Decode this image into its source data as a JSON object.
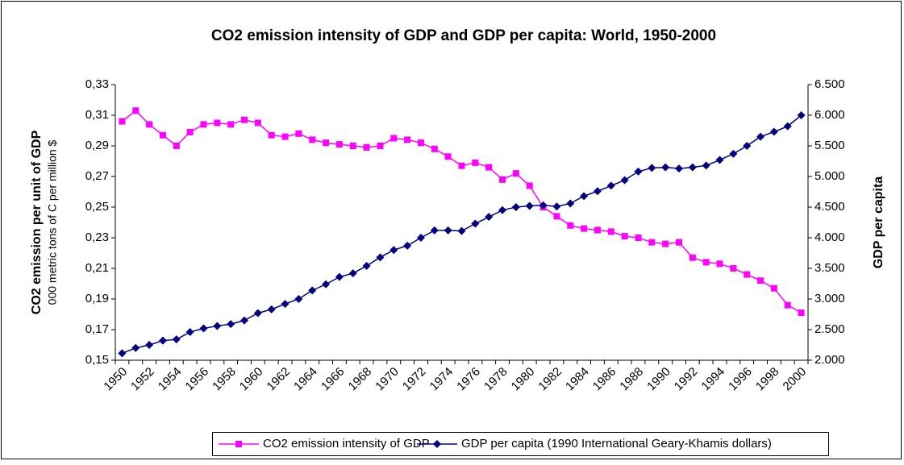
{
  "chart_data": {
    "type": "line",
    "title": "CO2 emission intensity of GDP and GDP per capita: World, 1950-2000",
    "y_label": "CO2 emission per unit of GDP",
    "y_sublabel": "000 metric tons of C per million $",
    "y2_label": "GDP per capita",
    "categories": [
      "1950",
      null,
      "1952",
      null,
      "1954",
      null,
      "1956",
      null,
      "1958",
      null,
      "1960",
      null,
      "1962",
      null,
      "1964",
      null,
      "1966",
      null,
      "1968",
      null,
      "1970",
      null,
      "1972",
      null,
      "1974",
      null,
      "1976",
      null,
      "1978",
      null,
      "1980",
      null,
      "1982",
      null,
      "1984",
      null,
      "1986",
      null,
      "1988",
      null,
      "1990",
      null,
      "1992",
      null,
      "1994",
      null,
      "1996",
      null,
      "1998",
      null,
      "2000"
    ],
    "series": [
      {
        "name": "CO2 emission intensity of GDP",
        "color": "#ff00ff",
        "marker": "square",
        "axis": "y",
        "values": [
          0.306,
          0.313,
          0.304,
          0.297,
          0.29,
          0.299,
          0.304,
          0.305,
          0.304,
          0.307,
          0.305,
          0.297,
          0.296,
          0.298,
          0.294,
          0.292,
          0.291,
          0.29,
          0.289,
          0.29,
          0.295,
          0.294,
          0.292,
          0.288,
          0.283,
          0.277,
          0.279,
          0.276,
          0.268,
          0.272,
          0.264,
          0.25,
          0.244,
          0.238,
          0.236,
          0.235,
          0.234,
          0.231,
          0.23,
          0.227,
          0.226,
          0.227,
          0.217,
          0.214,
          0.213,
          0.21,
          0.206,
          0.202,
          0.197,
          0.186,
          0.181
        ]
      },
      {
        "name": "GDP per capita (1990 International Geary-Khamis dollars)",
        "color": "#000080",
        "marker": "diamond",
        "axis": "y2",
        "values": [
          2113,
          2200,
          2250,
          2320,
          2340,
          2460,
          2520,
          2560,
          2590,
          2650,
          2770,
          2830,
          2920,
          3000,
          3140,
          3240,
          3360,
          3420,
          3540,
          3680,
          3800,
          3870,
          4000,
          4120,
          4120,
          4110,
          4230,
          4340,
          4450,
          4500,
          4520,
          4530,
          4510,
          4560,
          4680,
          4760,
          4850,
          4940,
          5080,
          5140,
          5150,
          5130,
          5150,
          5180,
          5270,
          5370,
          5500,
          5650,
          5730,
          5820,
          6000
        ]
      }
    ],
    "ylim": [
      0.15,
      0.33
    ],
    "yticks": [
      {
        "value": 0.15,
        "label": "0,15"
      },
      {
        "value": 0.17,
        "label": "0,17"
      },
      {
        "value": 0.19,
        "label": "0,19"
      },
      {
        "value": 0.21,
        "label": "0,21"
      },
      {
        "value": 0.23,
        "label": "0,23"
      },
      {
        "value": 0.25,
        "label": "0,25"
      },
      {
        "value": 0.27,
        "label": "0,27"
      },
      {
        "value": 0.29,
        "label": "0,29"
      },
      {
        "value": 0.31,
        "label": "0,31"
      },
      {
        "value": 0.33,
        "label": "0,33"
      }
    ],
    "y2lim": [
      2000,
      6500
    ],
    "y2ticks": [
      {
        "value": 2000,
        "label": "2.000"
      },
      {
        "value": 2500,
        "label": "2.500"
      },
      {
        "value": 3000,
        "label": "3.000"
      },
      {
        "value": 3500,
        "label": "3.500"
      },
      {
        "value": 4000,
        "label": "4.000"
      },
      {
        "value": 4500,
        "label": "4.500"
      },
      {
        "value": 5000,
        "label": "5.000"
      },
      {
        "value": 5500,
        "label": "5.500"
      },
      {
        "value": 6000,
        "label": "6.000"
      },
      {
        "value": 6500,
        "label": "6.500"
      }
    ],
    "grid": false,
    "legend": "bottom"
  }
}
